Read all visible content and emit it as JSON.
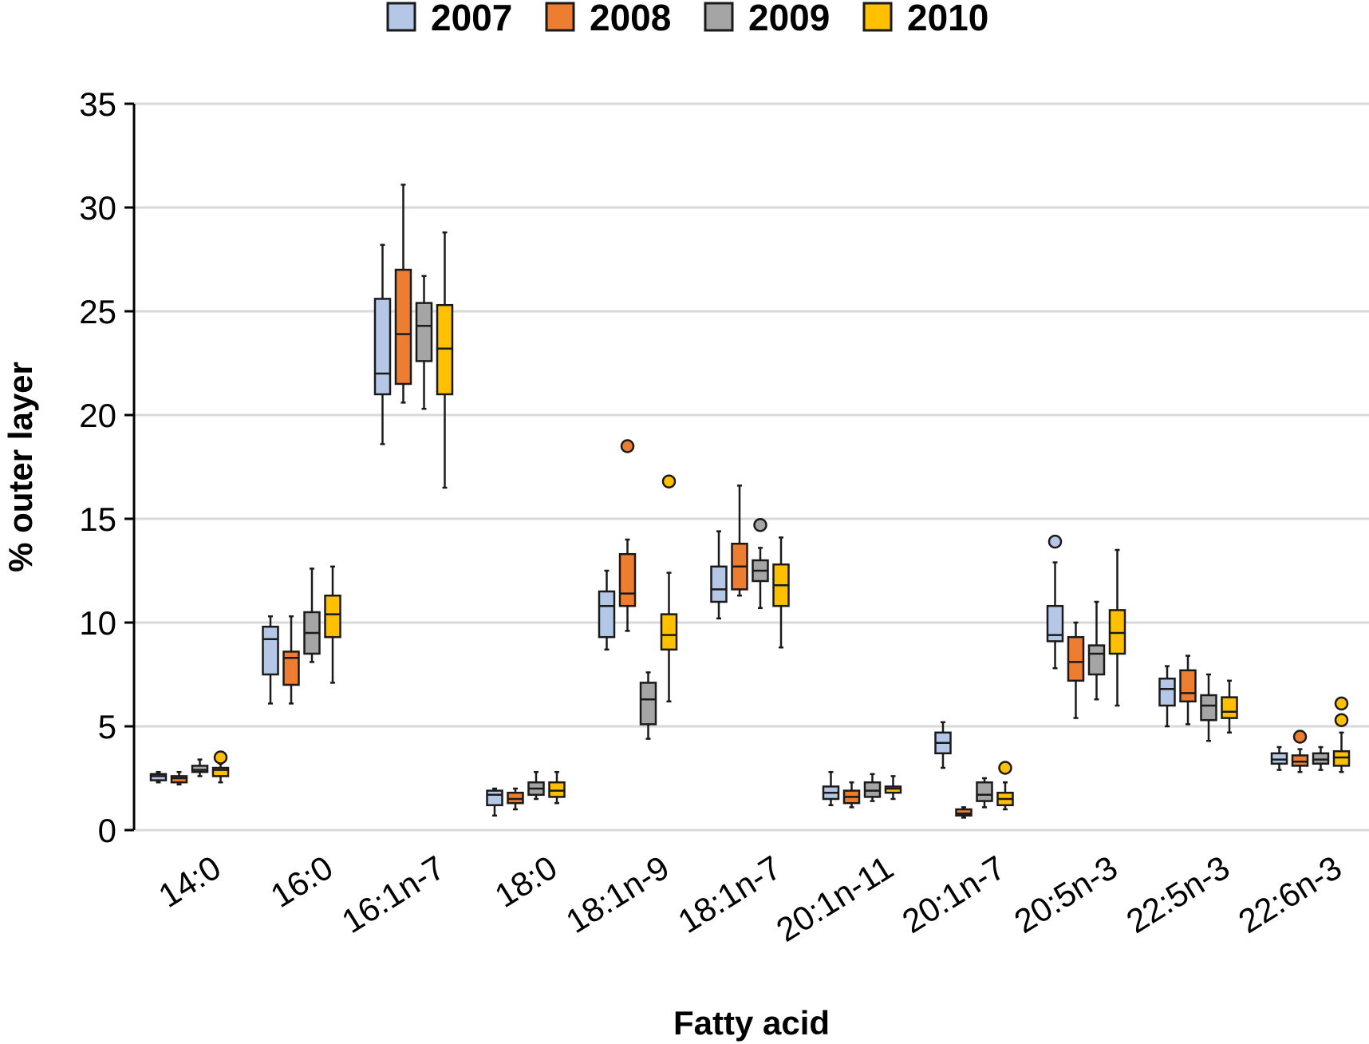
{
  "chart_data": {
    "type": "boxplot",
    "xlabel": "Fatty acid",
    "ylabel": "% outer layer",
    "ylim": [
      0,
      35
    ],
    "yticks": [
      0,
      5,
      10,
      15,
      20,
      25,
      30,
      35
    ],
    "grid": true,
    "legend_position": "top-center",
    "categories": [
      "14:0",
      "16:0",
      "16:1n-7",
      "18:0",
      "18:1n-9",
      "18:1n-7",
      "20:1n-11",
      "20:1n-7",
      "20:5n-3",
      "22:5n-3",
      "22:6n-3"
    ],
    "series": [
      {
        "name": "2007",
        "color": "#b4c7e7",
        "boxes": [
          {
            "min": 2.3,
            "q1": 2.4,
            "median": 2.6,
            "q3": 2.7,
            "max": 2.8,
            "outliers": []
          },
          {
            "min": 6.1,
            "q1": 7.5,
            "median": 9.2,
            "q3": 9.8,
            "max": 10.3,
            "outliers": []
          },
          {
            "min": 18.6,
            "q1": 21.0,
            "median": 22.0,
            "q3": 25.6,
            "max": 28.2,
            "outliers": []
          },
          {
            "min": 0.7,
            "q1": 1.2,
            "median": 1.7,
            "q3": 1.9,
            "max": 2.0,
            "outliers": []
          },
          {
            "min": 8.7,
            "q1": 9.3,
            "median": 10.8,
            "q3": 11.5,
            "max": 12.5,
            "outliers": []
          },
          {
            "min": 10.2,
            "q1": 11.0,
            "median": 11.6,
            "q3": 12.7,
            "max": 14.4,
            "outliers": []
          },
          {
            "min": 1.2,
            "q1": 1.5,
            "median": 1.8,
            "q3": 2.1,
            "max": 2.8,
            "outliers": []
          },
          {
            "min": 3.0,
            "q1": 3.7,
            "median": 4.2,
            "q3": 4.7,
            "max": 5.2,
            "outliers": []
          },
          {
            "min": 7.8,
            "q1": 9.1,
            "median": 9.4,
            "q3": 10.8,
            "max": 12.9,
            "outliers": [
              13.9
            ]
          },
          {
            "min": 5.0,
            "q1": 6.0,
            "median": 6.8,
            "q3": 7.3,
            "max": 7.9,
            "outliers": []
          },
          {
            "min": 2.9,
            "q1": 3.2,
            "median": 3.4,
            "q3": 3.7,
            "max": 4.0,
            "outliers": []
          }
        ]
      },
      {
        "name": "2008",
        "color": "#ed7d31",
        "boxes": [
          {
            "min": 2.2,
            "q1": 2.3,
            "median": 2.5,
            "q3": 2.6,
            "max": 2.8,
            "outliers": []
          },
          {
            "min": 6.1,
            "q1": 7.0,
            "median": 8.3,
            "q3": 8.6,
            "max": 10.3,
            "outliers": []
          },
          {
            "min": 20.6,
            "q1": 21.5,
            "median": 23.9,
            "q3": 27.0,
            "max": 31.1,
            "outliers": []
          },
          {
            "min": 1.0,
            "q1": 1.3,
            "median": 1.5,
            "q3": 1.8,
            "max": 2.0,
            "outliers": []
          },
          {
            "min": 9.6,
            "q1": 10.8,
            "median": 11.4,
            "q3": 13.3,
            "max": 14.0,
            "outliers": [
              18.5
            ]
          },
          {
            "min": 11.3,
            "q1": 11.6,
            "median": 12.7,
            "q3": 13.8,
            "max": 16.6,
            "outliers": []
          },
          {
            "min": 1.1,
            "q1": 1.3,
            "median": 1.6,
            "q3": 1.9,
            "max": 2.3,
            "outliers": []
          },
          {
            "min": 0.6,
            "q1": 0.7,
            "median": 0.8,
            "q3": 1.0,
            "max": 1.1,
            "outliers": []
          },
          {
            "min": 5.4,
            "q1": 7.2,
            "median": 8.1,
            "q3": 9.3,
            "max": 10.0,
            "outliers": []
          },
          {
            "min": 5.1,
            "q1": 6.2,
            "median": 6.6,
            "q3": 7.7,
            "max": 8.4,
            "outliers": []
          },
          {
            "min": 2.8,
            "q1": 3.1,
            "median": 3.3,
            "q3": 3.6,
            "max": 3.9,
            "outliers": [
              4.5
            ]
          }
        ]
      },
      {
        "name": "2009",
        "color": "#a5a5a5",
        "boxes": [
          {
            "min": 2.6,
            "q1": 2.8,
            "median": 2.9,
            "q3": 3.1,
            "max": 3.4,
            "outliers": []
          },
          {
            "min": 8.1,
            "q1": 8.5,
            "median": 9.5,
            "q3": 10.5,
            "max": 12.6,
            "outliers": []
          },
          {
            "min": 20.3,
            "q1": 22.6,
            "median": 24.3,
            "q3": 25.4,
            "max": 26.7,
            "outliers": []
          },
          {
            "min": 1.5,
            "q1": 1.7,
            "median": 2.0,
            "q3": 2.3,
            "max": 2.8,
            "outliers": []
          },
          {
            "min": 4.4,
            "q1": 5.1,
            "median": 6.3,
            "q3": 7.1,
            "max": 7.6,
            "outliers": []
          },
          {
            "min": 10.7,
            "q1": 12.0,
            "median": 12.5,
            "q3": 13.0,
            "max": 13.6,
            "outliers": [
              14.7
            ]
          },
          {
            "min": 1.4,
            "q1": 1.6,
            "median": 1.9,
            "q3": 2.3,
            "max": 2.7,
            "outliers": []
          },
          {
            "min": 1.1,
            "q1": 1.4,
            "median": 1.7,
            "q3": 2.3,
            "max": 2.5,
            "outliers": []
          },
          {
            "min": 6.3,
            "q1": 7.5,
            "median": 8.5,
            "q3": 8.9,
            "max": 11.0,
            "outliers": []
          },
          {
            "min": 4.3,
            "q1": 5.3,
            "median": 6.0,
            "q3": 6.5,
            "max": 7.5,
            "outliers": []
          },
          {
            "min": 2.9,
            "q1": 3.2,
            "median": 3.4,
            "q3": 3.7,
            "max": 4.0,
            "outliers": []
          }
        ]
      },
      {
        "name": "2010",
        "color": "#ffc000",
        "boxes": [
          {
            "min": 2.3,
            "q1": 2.6,
            "median": 2.9,
            "q3": 3.0,
            "max": 3.2,
            "outliers": [
              3.5
            ]
          },
          {
            "min": 7.1,
            "q1": 9.3,
            "median": 10.4,
            "q3": 11.3,
            "max": 12.7,
            "outliers": []
          },
          {
            "min": 16.5,
            "q1": 21.0,
            "median": 23.2,
            "q3": 25.3,
            "max": 28.8,
            "outliers": []
          },
          {
            "min": 1.3,
            "q1": 1.6,
            "median": 1.9,
            "q3": 2.3,
            "max": 2.8,
            "outliers": []
          },
          {
            "min": 6.2,
            "q1": 8.7,
            "median": 9.4,
            "q3": 10.4,
            "max": 12.4,
            "outliers": [
              16.8
            ]
          },
          {
            "min": 8.8,
            "q1": 10.8,
            "median": 11.8,
            "q3": 12.8,
            "max": 14.1,
            "outliers": []
          },
          {
            "min": 1.5,
            "q1": 1.8,
            "median": 2.0,
            "q3": 2.1,
            "max": 2.6,
            "outliers": []
          },
          {
            "min": 1.0,
            "q1": 1.2,
            "median": 1.5,
            "q3": 1.8,
            "max": 2.3,
            "outliers": [
              3.0
            ]
          },
          {
            "min": 6.0,
            "q1": 8.5,
            "median": 9.5,
            "q3": 10.6,
            "max": 13.5,
            "outliers": []
          },
          {
            "min": 4.7,
            "q1": 5.4,
            "median": 5.7,
            "q3": 6.4,
            "max": 7.2,
            "outliers": []
          },
          {
            "min": 2.8,
            "q1": 3.1,
            "median": 3.5,
            "q3": 3.8,
            "max": 4.7,
            "outliers": [
              5.3,
              6.1
            ]
          }
        ]
      }
    ]
  }
}
